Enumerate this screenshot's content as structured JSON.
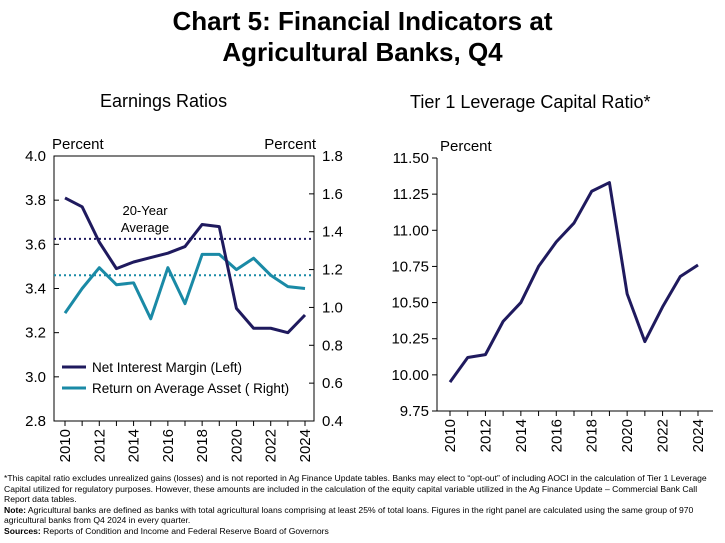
{
  "title_line1": "Chart 5: Financial Indicators at",
  "title_line2": "Agricultural Banks, Q4",
  "colors": {
    "nim": "#1f1a5e",
    "roa": "#1a8aa6",
    "tier1": "#1f1a5e",
    "text": "#000000"
  },
  "chart_data": [
    {
      "type": "line",
      "title": "Earnings Ratios",
      "left_axis_label": "Percent",
      "right_axis_label": "Percent",
      "x": [
        2010,
        2011,
        2012,
        2013,
        2014,
        2015,
        2016,
        2017,
        2018,
        2019,
        2020,
        2021,
        2022,
        2023,
        2024
      ],
      "x_tick_labels": [
        "2010",
        "2012",
        "2014",
        "2016",
        "2018",
        "2020",
        "2022",
        "2024"
      ],
      "ylim_left": [
        2.8,
        4.0
      ],
      "left_tick_labels": [
        "4.0",
        "3.8",
        "3.6",
        "3.4",
        "3.2",
        "3.0",
        "2.8"
      ],
      "ylim_right": [
        0.4,
        1.8
      ],
      "right_tick_labels": [
        "1.8",
        "1.6",
        "1.4",
        "1.2",
        "1.0",
        "0.8",
        "0.6",
        "0.4"
      ],
      "series": [
        {
          "name": "Net Interest Margin (Left)",
          "axis": "left",
          "values": [
            3.81,
            3.77,
            3.61,
            3.49,
            3.52,
            3.54,
            3.56,
            3.59,
            3.69,
            3.68,
            3.31,
            3.22,
            3.22,
            3.2,
            3.28
          ]
        },
        {
          "name": "Return on Average Asset ( Right)",
          "axis": "right",
          "values": [
            0.97,
            1.1,
            1.21,
            1.12,
            1.13,
            0.94,
            1.21,
            1.02,
            1.28,
            1.28,
            1.2,
            1.26,
            1.17,
            1.11,
            1.1
          ]
        }
      ],
      "reference_lines": [
        {
          "axis": "left",
          "value": 3.625,
          "color": "#1f1a5e"
        },
        {
          "axis": "right",
          "value": 1.17,
          "color": "#1a8aa6"
        }
      ],
      "annotation": [
        "20-Year",
        "Average"
      ],
      "legend_position": "bottom-left"
    },
    {
      "type": "line",
      "title": "Tier 1 Leverage Capital Ratio*",
      "ylabel": "Percent",
      "x": [
        2010,
        2011,
        2012,
        2013,
        2014,
        2015,
        2016,
        2017,
        2018,
        2019,
        2020,
        2021,
        2022,
        2023,
        2024
      ],
      "x_tick_labels": [
        "2010",
        "2012",
        "2014",
        "2016",
        "2018",
        "2020",
        "2022",
        "2024"
      ],
      "ylim": [
        9.75,
        11.5
      ],
      "y_tick_labels": [
        "11.50",
        "11.25",
        "11.00",
        "10.75",
        "10.50",
        "10.25",
        "10.00",
        "9.75"
      ],
      "series": [
        {
          "name": "Tier 1 Leverage Capital Ratio",
          "values": [
            9.95,
            10.12,
            10.14,
            10.37,
            10.5,
            10.75,
            10.92,
            11.05,
            11.27,
            11.33,
            10.56,
            10.23,
            10.47,
            10.68,
            10.76
          ]
        }
      ]
    }
  ],
  "notes": {
    "footnote": "*This capital ratio excludes unrealized gains (losses) and is not reported in Ag Finance Update tables. Banks may elect to “opt-out” of including AOCI in the calculation of Tier 1 Leverage Capital utilized for regulatory purposes. However, these amounts are included in the calculation of the equity capital variable utilized in the Ag Finance Update – Commercial Bank Call Report data tables.",
    "note_label": "Note:",
    "note_text": " Agricultural banks are defined as banks with total agricultural loans comprising at least 25% of total loans. Figures in the right panel are calculated using the same group of 970 agricultural banks from Q4 2024 in every quarter.",
    "sources_label": "Sources:",
    "sources_text": " Reports of Condition and Income and Federal Reserve Board of Governors"
  }
}
